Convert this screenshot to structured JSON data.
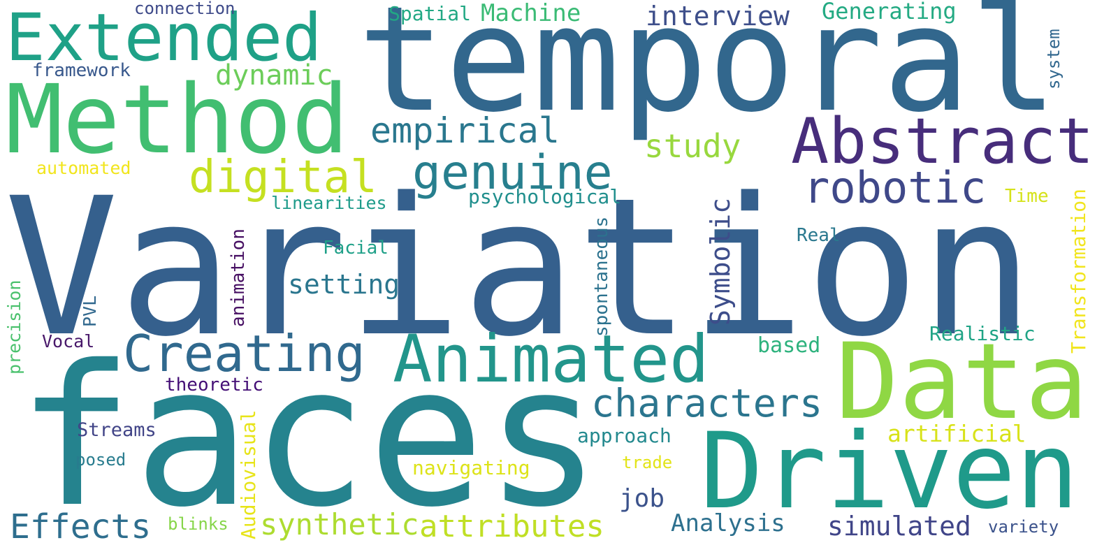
{
  "words": [
    {
      "text": "Variation",
      "color": "#35608d",
      "rotated": false
    },
    {
      "text": "temporal",
      "color": "#32678d",
      "rotated": false
    },
    {
      "text": "faces",
      "color": "#25838e",
      "rotated": false
    },
    {
      "text": "Data",
      "color": "#8fd744",
      "rotated": false
    },
    {
      "text": "Driven",
      "color": "#1f9a8a",
      "rotated": false
    },
    {
      "text": "Method",
      "color": "#41be71",
      "rotated": false
    },
    {
      "text": "Extended",
      "color": "#1fa187",
      "rotated": false
    },
    {
      "text": "Animated",
      "color": "#22958b",
      "rotated": false
    },
    {
      "text": "Abstract",
      "color": "#472d7b",
      "rotated": false
    },
    {
      "text": "Creating",
      "color": "#30698e",
      "rotated": false
    },
    {
      "text": "genuine",
      "color": "#277f8e",
      "rotated": false
    },
    {
      "text": "robotic",
      "color": "#3f4889",
      "rotated": false
    },
    {
      "text": "digital",
      "color": "#c5e021",
      "rotated": false
    },
    {
      "text": "characters",
      "color": "#2b758e",
      "rotated": false
    },
    {
      "text": "empirical",
      "color": "#2a778e",
      "rotated": false
    },
    {
      "text": "attributes",
      "color": "#c0df25",
      "rotated": false
    },
    {
      "text": "Effects",
      "color": "#2e6e8e",
      "rotated": false
    },
    {
      "text": "synthetic",
      "color": "#addc30",
      "rotated": false
    },
    {
      "text": "dynamic",
      "color": "#6ccd5a",
      "rotated": false
    },
    {
      "text": "study",
      "color": "#98d83e",
      "rotated": false
    },
    {
      "text": "simulated",
      "color": "#404588",
      "rotated": false
    },
    {
      "text": "interview",
      "color": "#3d4e8a",
      "rotated": false
    },
    {
      "text": "setting",
      "color": "#2a768e",
      "rotated": false
    },
    {
      "text": "Symbolic",
      "color": "#3d4d8a",
      "rotated": true
    },
    {
      "text": "Analysis",
      "color": "#2d708e",
      "rotated": false
    },
    {
      "text": "Machine",
      "color": "#3bbb75",
      "rotated": false
    },
    {
      "text": "Generating",
      "color": "#24aa83",
      "rotated": false
    },
    {
      "text": "artificial",
      "color": "#d8e219",
      "rotated": false
    },
    {
      "text": "job",
      "color": "#3b528b",
      "rotated": false
    },
    {
      "text": "based",
      "color": "#2db27d",
      "rotated": false
    },
    {
      "text": "Spatial",
      "color": "#22a884",
      "rotated": false
    },
    {
      "text": "psychological",
      "color": "#218f8d",
      "rotated": false
    },
    {
      "text": "approach",
      "color": "#23898e",
      "rotated": false
    },
    {
      "text": "Realistic",
      "color": "#20a486",
      "rotated": false
    },
    {
      "text": "navigating",
      "color": "#dde318",
      "rotated": false
    },
    {
      "text": "Audiovisual",
      "color": "#e7e419",
      "rotated": true
    },
    {
      "text": "spontaneous",
      "color": "#2c728e",
      "rotated": true
    },
    {
      "text": "animation",
      "color": "#471063",
      "rotated": true
    },
    {
      "text": "Transformation",
      "color": "#f1e51d",
      "rotated": true
    },
    {
      "text": "theoretic",
      "color": "#440f76",
      "rotated": false
    },
    {
      "text": "Streams",
      "color": "#414487",
      "rotated": false
    },
    {
      "text": "framework",
      "color": "#38588c",
      "rotated": false
    },
    {
      "text": "connection",
      "color": "#3e4a89",
      "rotated": false
    },
    {
      "text": "linearities",
      "color": "#1e9b8a",
      "rotated": false
    },
    {
      "text": "Facial",
      "color": "#1fa088",
      "rotated": false
    },
    {
      "text": "automated",
      "color": "#f1e51d",
      "rotated": false
    },
    {
      "text": "precision",
      "color": "#4ac16d",
      "rotated": true
    },
    {
      "text": "PVL",
      "color": "#31688e",
      "rotated": true
    },
    {
      "text": "Vocal",
      "color": "#48186a",
      "rotated": false
    },
    {
      "text": "posed",
      "color": "#287c8e",
      "rotated": false
    },
    {
      "text": "blinks",
      "color": "#86d549",
      "rotated": false
    },
    {
      "text": "trade",
      "color": "#e2e418",
      "rotated": false
    },
    {
      "text": "Real",
      "color": "#2a788e",
      "rotated": false
    },
    {
      "text": "Time",
      "color": "#d5e21a",
      "rotated": false
    },
    {
      "text": "system",
      "color": "#31678e",
      "rotated": true
    },
    {
      "text": "variety",
      "color": "#3b528b",
      "rotated": false
    }
  ]
}
